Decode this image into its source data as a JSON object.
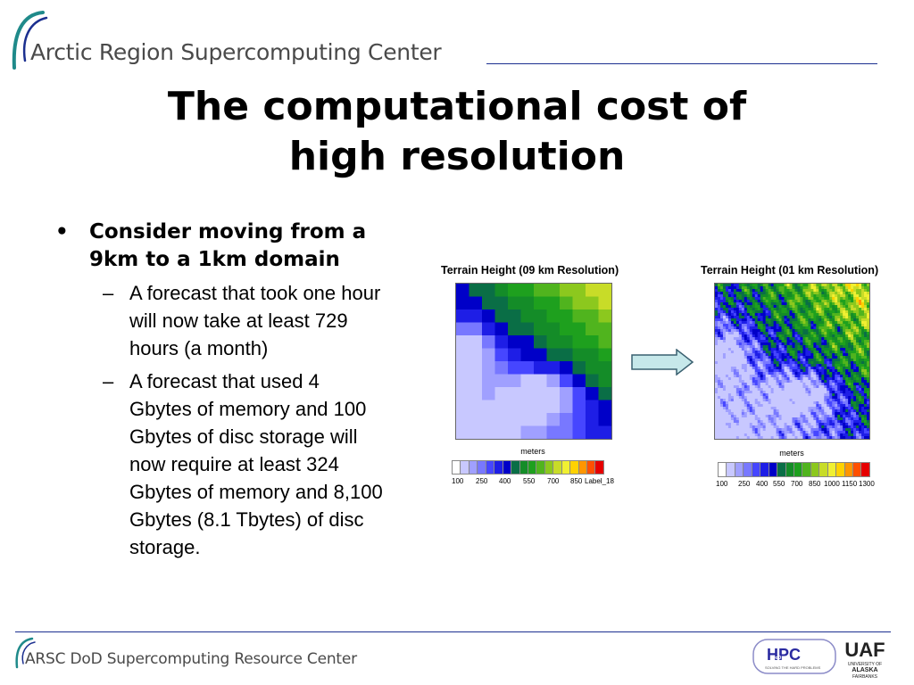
{
  "header": {
    "org_name": "Arctic Region Supercomputing Center"
  },
  "slide": {
    "title_line1": "The computational cost of",
    "title_line2": "high resolution",
    "bullets": [
      {
        "marker": "•",
        "text_line1": "Consider moving from a",
        "text_line2": "9km to a 1km domain",
        "sub": [
          {
            "marker": "–",
            "lines": [
              "A forecast that took one hour",
              "will now take at least 729",
              "hours (a month)"
            ]
          },
          {
            "marker": "–",
            "lines": [
              "A forecast that used 4",
              "Gbytes of memory and 100",
              "Gbytes of disc storage will",
              "now require at least 324",
              "Gbytes of memory and 8,100",
              "Gbytes (8.1 Tbytes) of disc",
              "storage."
            ]
          }
        ]
      }
    ]
  },
  "figures": {
    "left": {
      "title": "Terrain Height (09 km Resolution)",
      "unit": "meters",
      "ticks": [
        "100",
        "250",
        "400",
        "550",
        "700",
        "850",
        "Label_18"
      ]
    },
    "right": {
      "title": "Terrain Height (01 km Resolution)",
      "unit": "meters",
      "ticks": [
        "100",
        "250",
        "400",
        "550",
        "700",
        "850",
        "1000",
        "1150",
        "1300"
      ]
    },
    "colorscale": [
      "#ffffff",
      "#c8c8ff",
      "#a0a0ff",
      "#7878ff",
      "#4646ff",
      "#1e1ee6",
      "#0000c8",
      "#0a6e46",
      "#148c28",
      "#1ea01e",
      "#50b41e",
      "#8cc81e",
      "#c8dc28",
      "#f0f032",
      "#ffd200",
      "#ff9600",
      "#ff5000",
      "#e60000"
    ]
  },
  "footer": {
    "org_name": "ARSC DoD Supercomputing Resource Center",
    "hpc_logo_text": "HPC",
    "hpc_dod_text": "DoD",
    "hpc_tagline": "SOLVING THE HARD PROBLEMS",
    "uaf_logo_text": "UAF",
    "uaf_sub1": "UNIVERSITY OF",
    "uaf_sub2": "ALASKA",
    "uaf_sub3": "FAIRBANKS"
  }
}
